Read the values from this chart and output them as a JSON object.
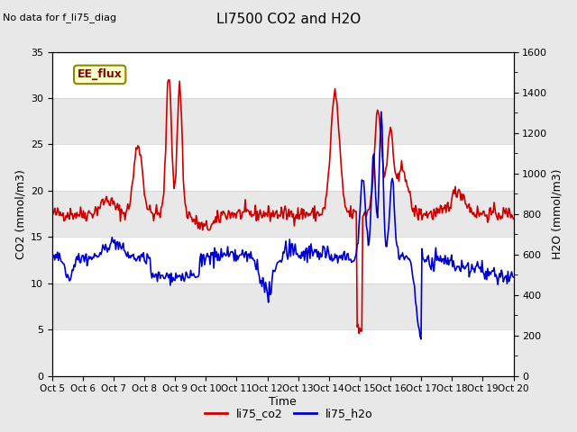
{
  "title": "LI7500 CO2 and H2O",
  "top_left_text": "No data for f_li75_diag",
  "annotation_box": "EE_flux",
  "xlabel": "Time",
  "ylabel_left": "CO2 (mmol/m3)",
  "ylabel_right": "H2O (mmol/m3)",
  "ylim_left": [
    0,
    35
  ],
  "ylim_right": [
    0,
    1600
  ],
  "yticks_left": [
    0,
    5,
    10,
    15,
    20,
    25,
    30,
    35
  ],
  "yticks_right": [
    0,
    200,
    400,
    600,
    800,
    1000,
    1200,
    1400,
    1600
  ],
  "xtick_labels": [
    "Oct 5",
    "Oct 6",
    "Oct 7",
    "Oct 8",
    "Oct 9",
    "Oct 10",
    "Oct 11",
    "Oct 12",
    "Oct 13",
    "Oct 14",
    "Oct 15",
    "Oct 16",
    "Oct 17",
    "Oct 18",
    "Oct 19",
    "Oct 20"
  ],
  "legend_labels": [
    "li75_co2",
    "li75_h2o"
  ],
  "legend_colors": [
    "#cc0000",
    "#0000cc"
  ],
  "color_co2": "#cc0000",
  "color_h2o": "#0000cc",
  "bg_color": "#e8e8e8",
  "plot_bg_color": "#e8e8e8",
  "stripe_color": "#ffffff",
  "annotation_bg": "#ffffcc",
  "annotation_border": "#888800",
  "annotation_text_color": "#880000",
  "num_points": 500
}
